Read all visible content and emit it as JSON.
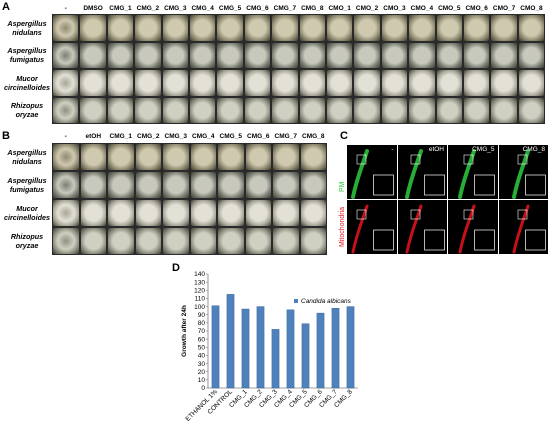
{
  "panels": {
    "A": {
      "letter": "A",
      "columns": [
        "-",
        "DMSO",
        "CMG_1",
        "CMG_2",
        "CMG_3",
        "CMG_4",
        "CMG_5",
        "CMG_6",
        "CMG_7",
        "CMG_8",
        "CMO_1",
        "CMO_2",
        "CMO_3",
        "CMO_4",
        "CMO_5",
        "CMO_6",
        "CMO_7",
        "CMO_8"
      ],
      "rows": [
        {
          "line1": "Aspergillus",
          "line2": "nidulans"
        },
        {
          "line1": "Aspergillus",
          "line2": "fumigatus"
        },
        {
          "line1": "Mucor",
          "line2": "circinelloides"
        },
        {
          "line1": "Rhizopus",
          "line2": "oryzae"
        }
      ]
    },
    "B": {
      "letter": "B",
      "columns": [
        "-",
        "etOH",
        "CMG_1",
        "CMG_2",
        "CMG_3",
        "CMG_4",
        "CMG_5",
        "CMG_6",
        "CMG_7",
        "CMG_8"
      ],
      "rows": [
        {
          "line1": "Aspergillus",
          "line2": "nidulans"
        },
        {
          "line1": "Aspergillus",
          "line2": "fumigatus"
        },
        {
          "line1": "Mucor",
          "line2": "circinelloides"
        },
        {
          "line1": "Rhizopus",
          "line2": "oryzae"
        }
      ]
    },
    "C": {
      "letter": "C",
      "columns": [
        "-",
        "etOH",
        "CMG_5",
        "CMG_8"
      ],
      "row_labels": [
        "PM",
        "Mitochondria"
      ],
      "colors": {
        "pm": "#2ecc40",
        "mito": "#e8141b"
      }
    },
    "D": {
      "letter": "D"
    }
  },
  "chart_data": {
    "type": "bar",
    "title": "",
    "xlabel": "",
    "ylabel": "Growth after 24h",
    "legend": "Candida albicans",
    "legend_placement": "top-right",
    "categories": [
      "ETHANOL 1%",
      "CONTROL",
      "CMG_1",
      "CMG_2",
      "CMG_3",
      "CMG_4",
      "CMG_5",
      "CMG_6",
      "CMG_7",
      "CMG_8"
    ],
    "series": [
      {
        "name": "Candida albicans",
        "values": [
          101,
          115,
          97,
          100,
          72,
          96,
          79,
          92,
          98,
          100
        ]
      }
    ],
    "ylim": [
      0,
      140
    ],
    "yticks": [
      0,
      10,
      20,
      30,
      40,
      50,
      60,
      70,
      80,
      90,
      100,
      110,
      120,
      130,
      140
    ],
    "bar_color": "#4f81bd",
    "grid": false
  }
}
